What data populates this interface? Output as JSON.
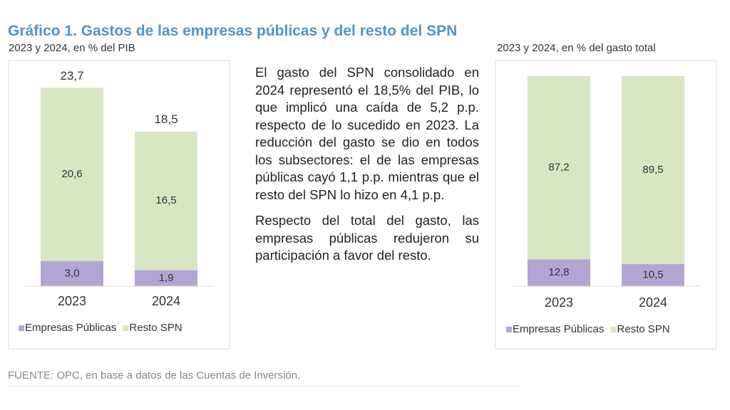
{
  "header": {
    "title": "Gráfico 1. Gastos de las empresas públicas y del resto del SPN"
  },
  "body": {
    "paragraphs": [
      "El gasto del SPN consolidado en 2024 representó el 18,5% del PIB, lo que implicó una caída de 5,2 p.p. respecto de lo sucedido en 2023. La reducción del gasto se dio en todos los subsectores: el de las empresas públicas cayó 1,1 p.p. mientras que el resto del SPN lo hizo en 4,1 p.p.",
      "Respecto del total del gasto, las empresas públicas redujeron su participación a favor del resto."
    ]
  },
  "footer": {
    "source": "FUENTE: OPC, en base a datos de las Cuentas de Inversión."
  },
  "chart_data": [
    {
      "type": "stacked_bar",
      "subtitle": "2023 y 2024, en % del PIB",
      "categories": [
        "2023",
        "2024"
      ],
      "series": [
        {
          "name": "Empresas Públicas",
          "color": "#b3a5d3",
          "values": [
            3.0,
            1.9
          ],
          "value_labels": [
            "3,0",
            "1,9"
          ]
        },
        {
          "name": "Resto SPN",
          "color": "#d8e6c2",
          "values": [
            20.6,
            16.5
          ],
          "value_labels": [
            "20,6",
            "16,5"
          ]
        }
      ],
      "totals": [
        23.7,
        18.5
      ],
      "total_labels": [
        "23,7",
        "18,5"
      ],
      "ylim": [
        0,
        25
      ]
    },
    {
      "type": "stacked_bar",
      "subtitle": "2023 y 2024, en % del gasto total",
      "categories": [
        "2023",
        "2024"
      ],
      "series": [
        {
          "name": "Empresas Públicas",
          "color": "#b3a5d3",
          "values": [
            12.8,
            10.5
          ],
          "value_labels": [
            "12,8",
            "10,5"
          ]
        },
        {
          "name": "Resto SPN",
          "color": "#d8e6c2",
          "values": [
            87.2,
            89.5
          ],
          "value_labels": [
            "87,2",
            "89,5"
          ]
        }
      ],
      "ylim": [
        0,
        100
      ]
    }
  ]
}
